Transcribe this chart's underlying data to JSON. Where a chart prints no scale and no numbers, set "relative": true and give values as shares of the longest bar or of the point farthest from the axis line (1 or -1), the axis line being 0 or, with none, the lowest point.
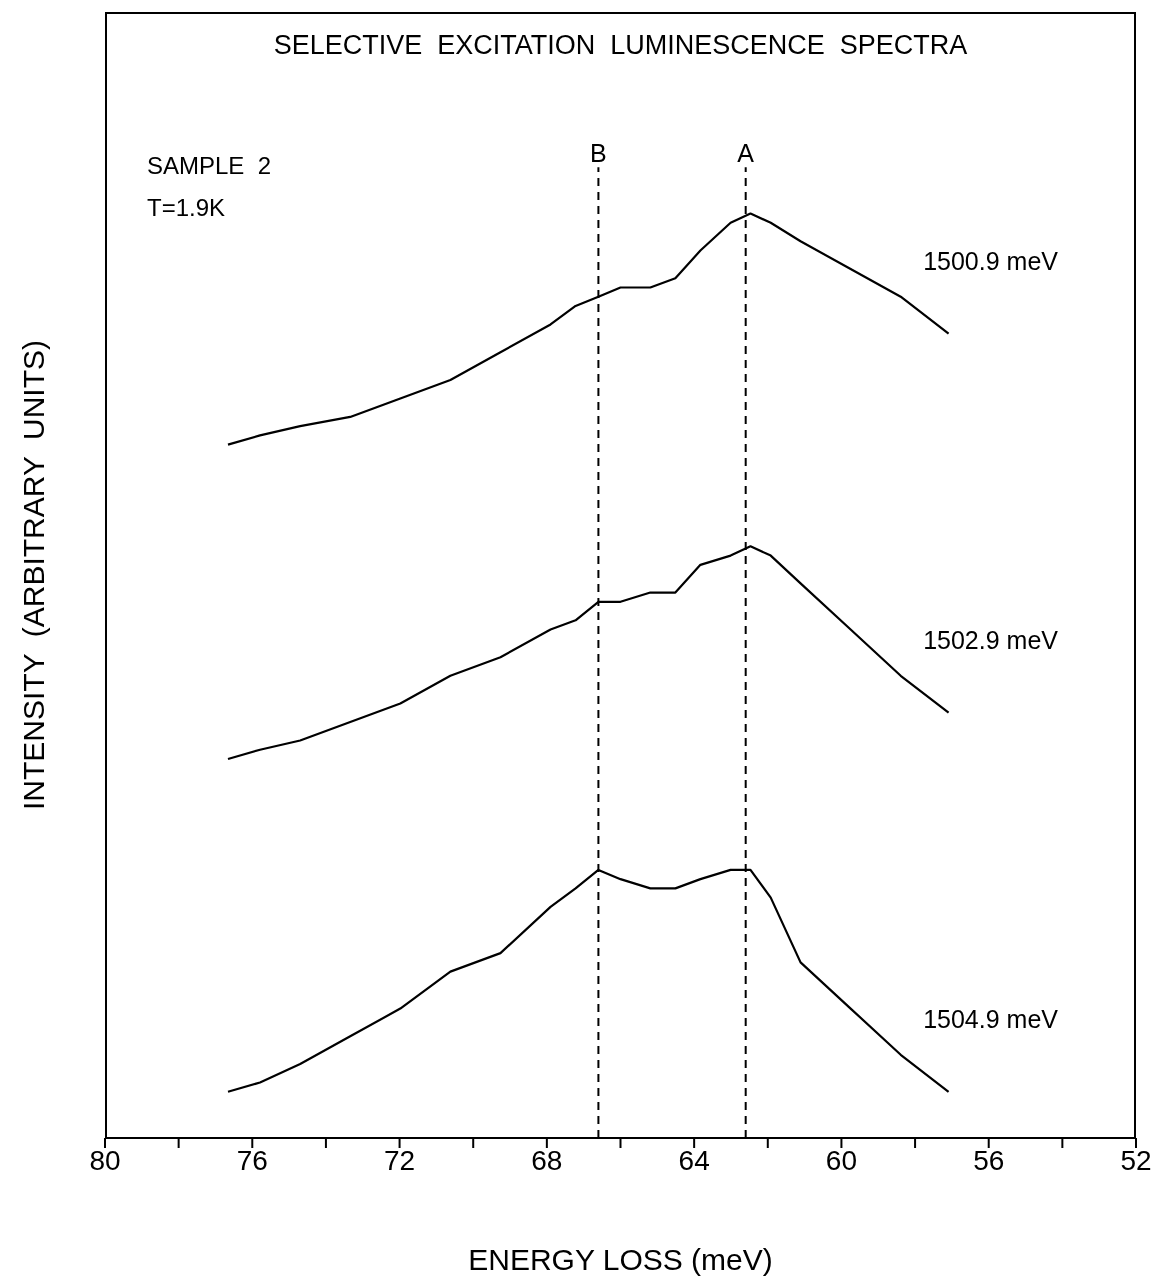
{
  "chart_data": {
    "type": "line",
    "title": "SELECTIVE  EXCITATION  LUMINESCENCE  SPECTRA",
    "xlabel": "ENERGY  LOSS  (meV)",
    "ylabel": "INTENSITY  (ARBITRARY  UNITS)",
    "annotations": [
      "SAMPLE  2",
      "T=1.9K"
    ],
    "relative": true,
    "x": [
      76.66,
      75.79,
      74.7,
      73.34,
      71.98,
      70.62,
      69.26,
      67.9,
      67.22,
      66.6,
      66.0,
      65.19,
      64.51,
      63.83,
      63.01,
      62.47,
      61.92,
      61.11,
      59.75,
      58.39,
      57.09
    ],
    "series": [
      {
        "name": "1500.9  meV",
        "color": "#000000",
        "values": [
          0.75,
          0.76,
          0.77,
          0.78,
          0.8,
          0.82,
          0.85,
          0.88,
          0.9,
          0.91,
          0.92,
          0.92,
          0.93,
          0.96,
          0.99,
          1.0,
          0.99,
          0.97,
          0.94,
          0.91,
          0.87
        ]
      },
      {
        "name": "1502.9  meV",
        "color": "#000000",
        "values": [
          0.41,
          0.42,
          0.43,
          0.45,
          0.47,
          0.5,
          0.52,
          0.55,
          0.56,
          0.58,
          0.58,
          0.59,
          0.59,
          0.62,
          0.63,
          0.64,
          0.63,
          0.6,
          0.55,
          0.5,
          0.46
        ]
      },
      {
        "name": "1504.9  meV",
        "color": "#000000",
        "values": [
          0.05,
          0.06,
          0.08,
          0.11,
          0.14,
          0.18,
          0.2,
          0.25,
          0.27,
          0.29,
          0.28,
          0.27,
          0.27,
          0.28,
          0.29,
          0.29,
          0.26,
          0.19,
          0.14,
          0.09,
          0.05
        ]
      }
    ],
    "xlim": [
      80,
      52
    ],
    "xticks": [
      80,
      {
        "value": 78,
        "label": null
      },
      76,
      {
        "value": 74,
        "label": null
      },
      72,
      {
        "value": 70,
        "label": null
      },
      68,
      {
        "value": 66,
        "label": null
      },
      64,
      {
        "value": 62,
        "label": null
      },
      60,
      {
        "value": 58,
        "label": null
      },
      56,
      {
        "value": 54,
        "label": null
      },
      52
    ],
    "ref_lines": [
      {
        "axis": "x",
        "value": 66.6,
        "label": "B",
        "line_style": "dashed"
      },
      {
        "axis": "x",
        "value": 62.6,
        "label": "A",
        "line_style": "dashed"
      }
    ],
    "grid": false,
    "marker": "none",
    "line_style": "solid"
  }
}
